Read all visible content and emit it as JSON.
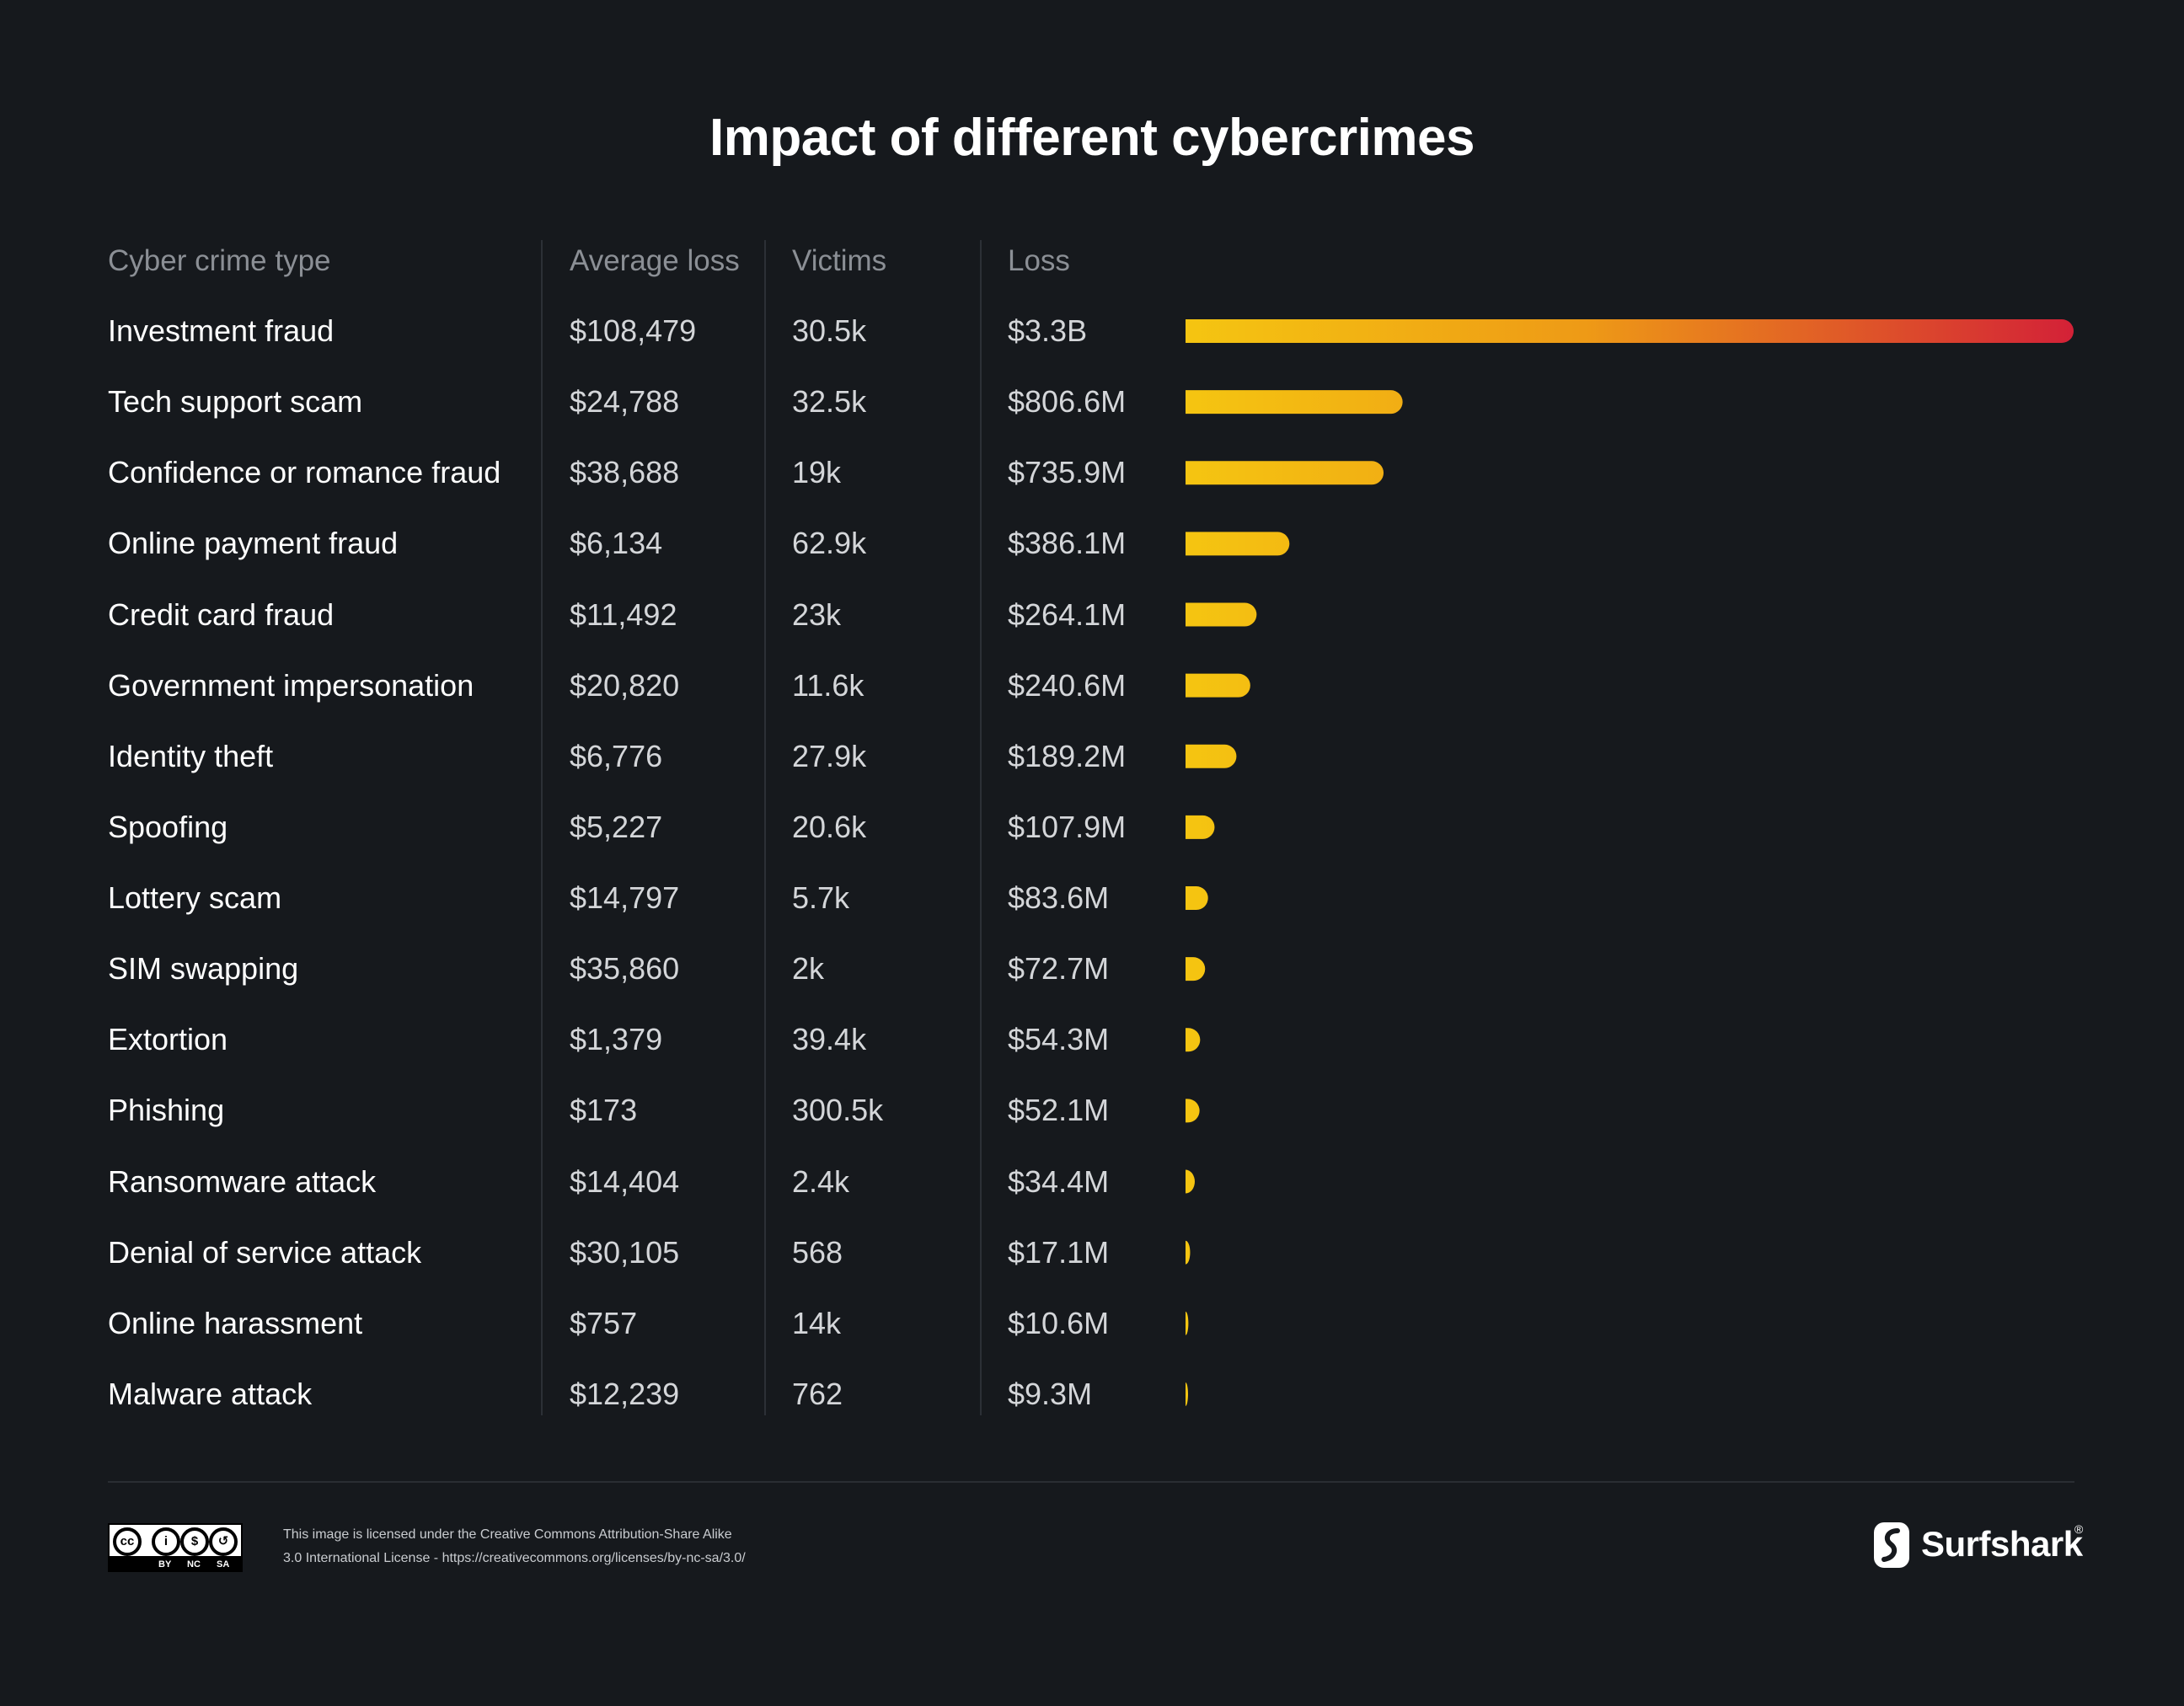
{
  "title": "Impact of different cybercrimes",
  "headers": {
    "type": "Cyber crime type",
    "avg": "Average loss",
    "victims": "Victims",
    "loss": "Loss"
  },
  "rows": [
    {
      "type": "Investment fraud",
      "avg": "$108,479",
      "victims": "30.5k",
      "loss": "$3.3B"
    },
    {
      "type": "Tech support scam",
      "avg": "$24,788",
      "victims": "32.5k",
      "loss": "$806.6M"
    },
    {
      "type": "Confidence or romance fraud",
      "avg": "$38,688",
      "victims": "19k",
      "loss": "$735.9M"
    },
    {
      "type": "Online payment fraud",
      "avg": "$6,134",
      "victims": "62.9k",
      "loss": "$386.1M"
    },
    {
      "type": "Credit card fraud",
      "avg": "$11,492",
      "victims": "23k",
      "loss": "$264.1M"
    },
    {
      "type": "Government impersonation",
      "avg": "$20,820",
      "victims": "11.6k",
      "loss": "$240.6M"
    },
    {
      "type": "Identity theft",
      "avg": "$6,776",
      "victims": "27.9k",
      "loss": "$189.2M"
    },
    {
      "type": "Spoofing",
      "avg": "$5,227",
      "victims": "20.6k",
      "loss": "$107.9M"
    },
    {
      "type": "Lottery scam",
      "avg": "$14,797",
      "victims": "5.7k",
      "loss": "$83.6M"
    },
    {
      "type": "SIM swapping",
      "avg": "$35,860",
      "victims": "2k",
      "loss": "$72.7M"
    },
    {
      "type": "Extortion",
      "avg": "$1,379",
      "victims": "39.4k",
      "loss": "$54.3M"
    },
    {
      "type": "Phishing",
      "avg": "$173",
      "victims": "300.5k",
      "loss": "$52.1M"
    },
    {
      "type": "Ransomware attack",
      "avg": "$14,404",
      "victims": "2.4k",
      "loss": "$34.4M"
    },
    {
      "type": "Denial of service attack",
      "avg": "$30,105",
      "victims": "568",
      "loss": "$17.1M"
    },
    {
      "type": "Online harassment",
      "avg": "$757",
      "victims": "14k",
      "loss": "$10.6M"
    },
    {
      "type": "Malware attack",
      "avg": "$12,239",
      "victims": "762",
      "loss": "$9.3M"
    }
  ],
  "chart_data": {
    "type": "bar",
    "orientation": "horizontal",
    "title": "Impact of different cybercrimes",
    "xlabel": "Loss",
    "categories": [
      "Investment fraud",
      "Tech support scam",
      "Confidence or romance fraud",
      "Online payment fraud",
      "Credit card fraud",
      "Government impersonation",
      "Identity theft",
      "Spoofing",
      "Lottery scam",
      "SIM swapping",
      "Extortion",
      "Phishing",
      "Ransomware attack",
      "Denial of service attack",
      "Online harassment",
      "Malware attack"
    ],
    "values": [
      3300,
      806.6,
      735.9,
      386.1,
      264.1,
      240.6,
      189.2,
      107.9,
      83.6,
      72.7,
      54.3,
      52.1,
      34.4,
      17.1,
      10.6,
      9.3
    ],
    "value_unit": "million USD",
    "xlim": [
      0,
      3300
    ],
    "grid": false,
    "colors": {
      "low": "#f5c511",
      "mid": "#ee9a16",
      "high": "#d32137"
    }
  },
  "license": {
    "line1": "This image is licensed under the Creative Commons Attribution-Share Alike",
    "line2": "3.0 International License - https://creativecommons.org/licenses/by-nc-sa/3.0/",
    "badge_labels": [
      "BY",
      "NC",
      "SA"
    ],
    "badge_symbols": [
      "cc",
      "i",
      "$",
      "↺"
    ]
  },
  "brand": {
    "name": "Surfshark",
    "reg": "®",
    "icon": "surfshark-logo-icon"
  },
  "colors": {
    "background": "#16191d",
    "divider": "#2c3036",
    "header_text": "#8b8f95"
  }
}
